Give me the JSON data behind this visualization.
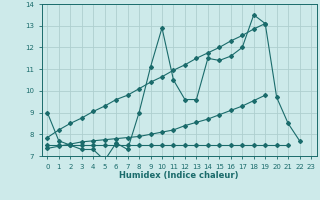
{
  "xlabel": "Humidex (Indice chaleur)",
  "xlim": [
    -0.5,
    23.5
  ],
  "ylim": [
    7,
    14
  ],
  "xticks": [
    0,
    1,
    2,
    3,
    4,
    5,
    6,
    7,
    8,
    9,
    10,
    11,
    12,
    13,
    14,
    15,
    16,
    17,
    18,
    19,
    20,
    21,
    22,
    23
  ],
  "yticks": [
    7,
    8,
    9,
    10,
    11,
    12,
    13,
    14
  ],
  "bg_color": "#cdeaea",
  "grid_color": "#aecfcf",
  "line_color": "#1a6b6b",
  "line1_y": [
    9.0,
    7.7,
    7.5,
    7.3,
    7.3,
    6.8,
    7.6,
    7.3,
    9.0,
    11.1,
    12.9,
    10.5,
    9.6,
    9.6,
    11.5,
    11.4,
    11.6,
    12.0,
    13.5,
    13.1,
    9.7,
    8.5,
    7.7,
    null
  ],
  "line2_y": [
    7.35,
    7.45,
    7.55,
    7.65,
    7.7,
    7.75,
    7.8,
    7.85,
    7.9,
    8.0,
    8.1,
    8.2,
    8.4,
    8.55,
    8.7,
    8.9,
    9.1,
    9.3,
    9.55,
    9.8,
    null,
    null,
    null,
    null
  ],
  "line3_y": [
    7.85,
    8.2,
    8.5,
    8.75,
    9.05,
    9.3,
    9.6,
    9.8,
    10.1,
    10.4,
    10.65,
    10.95,
    11.2,
    11.5,
    11.75,
    12.0,
    12.3,
    12.55,
    12.85,
    13.1,
    null,
    null,
    null,
    null
  ],
  "flat_y": [
    7.5,
    7.5,
    7.5,
    7.5,
    7.5,
    7.5,
    7.5,
    7.5,
    7.5,
    7.5,
    7.5,
    7.5,
    7.5,
    7.5,
    7.5,
    7.5,
    7.5,
    7.5,
    7.5,
    7.5,
    7.5,
    7.5,
    null,
    null
  ]
}
